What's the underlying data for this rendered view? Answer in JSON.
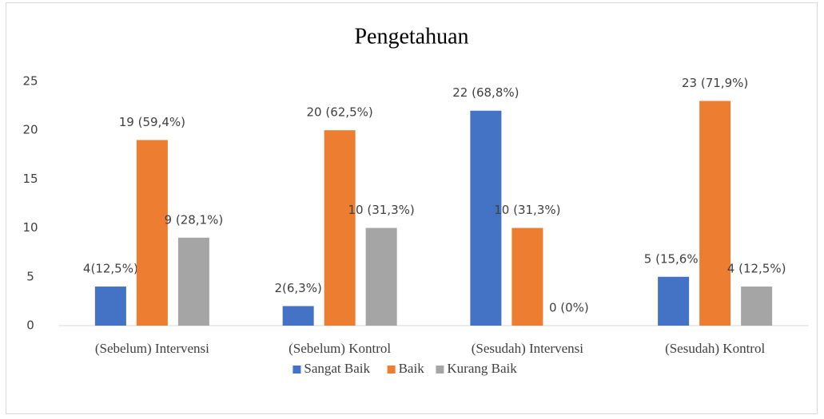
{
  "chart_data": {
    "type": "bar",
    "title": "Pengetahuan",
    "categories": [
      "(Sebelum) Intervensi",
      "(Sebelum) Kontrol",
      "(Sesudah) Intervensi",
      "(Sesudah) Kontrol"
    ],
    "series": [
      {
        "name": "Sangat Baik",
        "color": "#4472c4",
        "values": [
          4,
          2,
          22,
          5
        ],
        "value_labels": [
          "4(12,5%)",
          "2(6,3%)",
          "22 (68,8%)",
          "5 (15,6%)"
        ]
      },
      {
        "name": "Baik",
        "color": "#ed7d31",
        "values": [
          19,
          20,
          10,
          23
        ],
        "value_labels": [
          "19 (59,4%)",
          "20 (62,5%)",
          "10 (31,3%)",
          "23 (71,9%)"
        ]
      },
      {
        "name": "Kurang Baik",
        "color": "#a5a5a5",
        "values": [
          9,
          10,
          0,
          4
        ],
        "value_labels": [
          "9 (28,1%)",
          "10 (31,3%)",
          "0 (0%)",
          "4 (12,5%)"
        ]
      }
    ],
    "ylim": [
      0,
      25
    ],
    "yticks": [
      0,
      5,
      10,
      15,
      20,
      25
    ],
    "grid": false,
    "legend": "bottom"
  }
}
